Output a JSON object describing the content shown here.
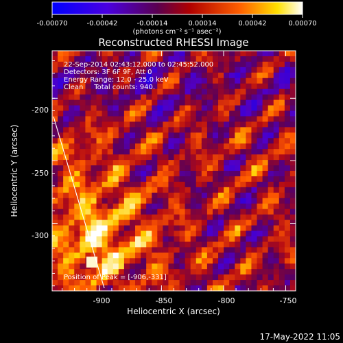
{
  "colorbar": {
    "ticks": [
      "-0.00070",
      "-0.00042",
      "-0.00014",
      "0.00014",
      "0.00042",
      "0.00070"
    ],
    "units": "(photons cm⁻² s⁻¹ asec⁻²)",
    "range": [
      -0.0007,
      0.0007
    ]
  },
  "chart_data": {
    "type": "heatmap",
    "title": "Reconstructed RHESSI Image",
    "xlabel": "Heliocentric X (arcsec)",
    "ylabel": "Heliocentric Y (arcsec)",
    "x_ticks": [
      "-900",
      "-850",
      "-800",
      "-750"
    ],
    "y_ticks": [
      "-200",
      "-250",
      "-300"
    ],
    "xlim": [
      -938,
      -742
    ],
    "ylim": [
      -354,
      -162
    ],
    "peak": [
      -906,
      -331
    ],
    "colormap": [
      "#0000ff",
      "#7000a0",
      "#c01030",
      "#ff5000",
      "#ffc000",
      "#ffffff"
    ],
    "limb_color": "#ffffff"
  },
  "info": {
    "line1": "22-Sep-2014 02:43:12.000 to 02:45:52.000",
    "line2": "Detectors: 3F 6F 9F, Att 0",
    "line3": "Energy Range: 12.0 - 25.0 keV",
    "line4": "Clean     Total counts: 940.",
    "peak_label": "Position of Peak = [-906,-331]"
  },
  "footer": {
    "date": "17-May-2022 11:05"
  }
}
